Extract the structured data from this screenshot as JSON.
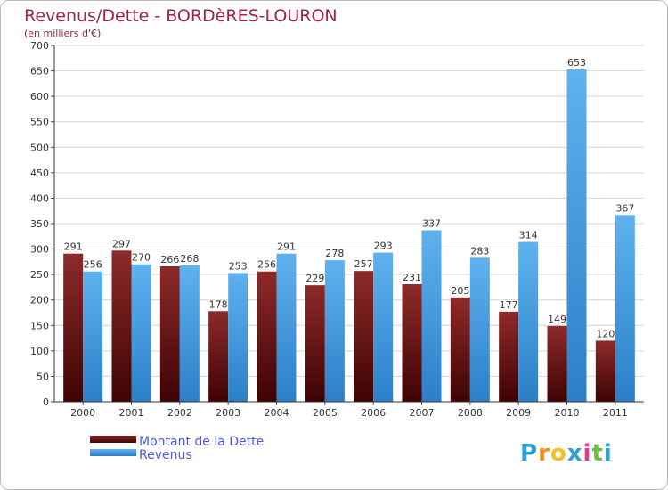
{
  "chart_data": {
    "type": "bar",
    "title": "Revenus/Dette - BORDèRES-LOURON",
    "subtitle": "(en milliers d'€)",
    "xlabel": "",
    "ylabel": "",
    "ylim": [
      0,
      700
    ],
    "yticks": [
      0,
      50,
      100,
      150,
      200,
      250,
      300,
      350,
      400,
      450,
      500,
      550,
      600,
      650,
      700
    ],
    "categories": [
      "2000",
      "2001",
      "2002",
      "2003",
      "2004",
      "2005",
      "2006",
      "2007",
      "2008",
      "2009",
      "2010",
      "2011"
    ],
    "grid": true,
    "legend_position": "bottom-left",
    "series": [
      {
        "name": "Montant de la Dette",
        "color": "#7a1212",
        "values": [
          291,
          297,
          266,
          178,
          256,
          229,
          257,
          231,
          205,
          177,
          149,
          120
        ]
      },
      {
        "name": "Revenus",
        "color": "#4aa3e6",
        "values": [
          256,
          270,
          268,
          253,
          291,
          278,
          293,
          337,
          283,
          314,
          653,
          367
        ]
      }
    ]
  },
  "logo": {
    "text": "Proxiti"
  }
}
